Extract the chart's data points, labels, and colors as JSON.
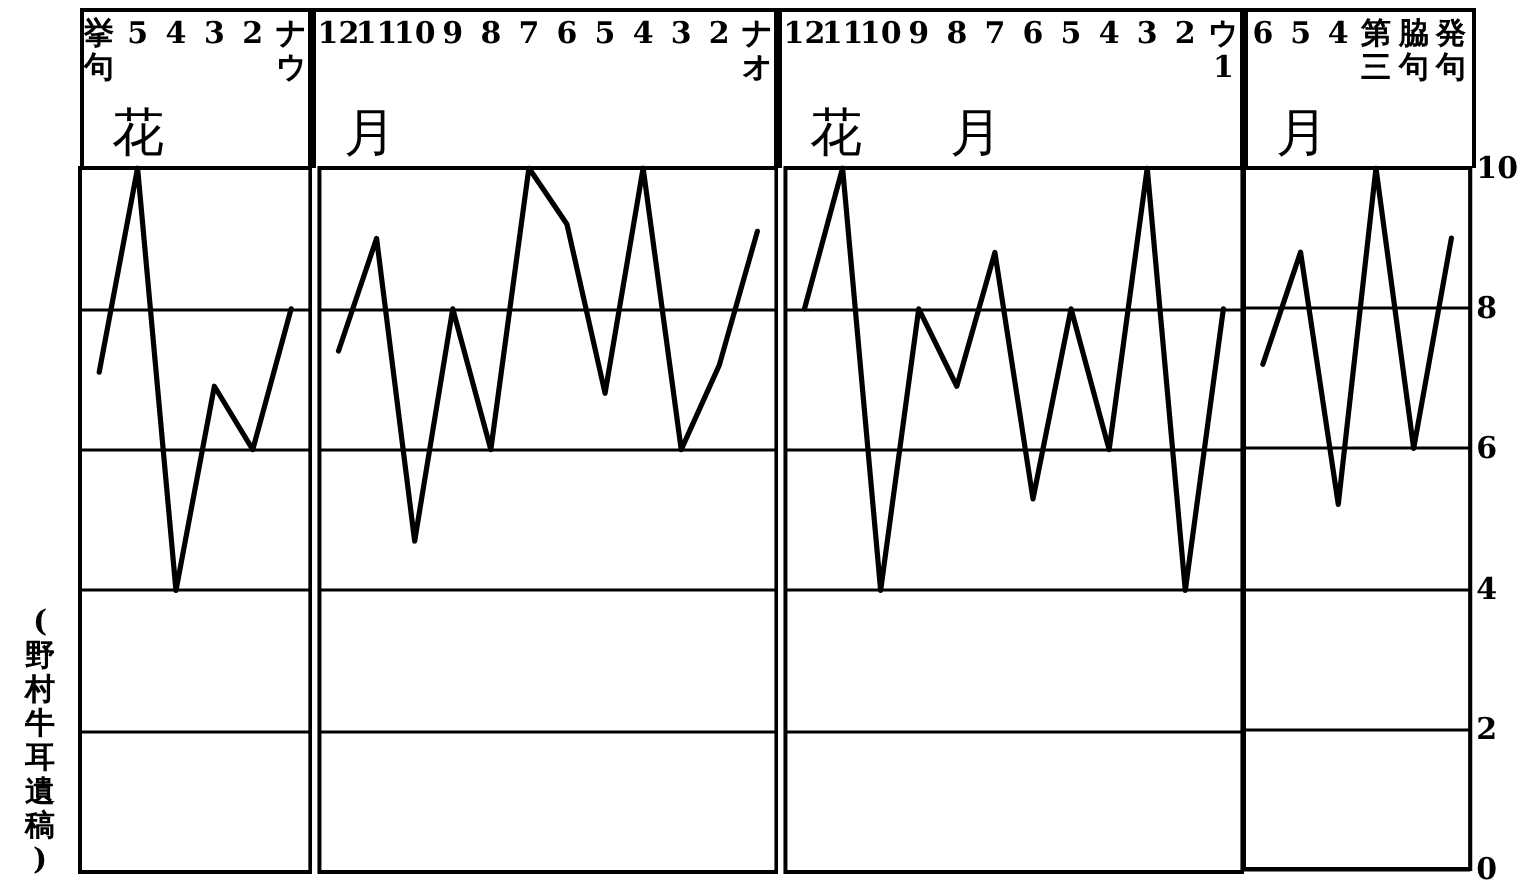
{
  "chart_data": [
    {
      "type": "line",
      "ylabel": "(野村牛耳遺稿)",
      "categories": [
        "挙句",
        "5",
        "4",
        "3",
        "2",
        "ナウ"
      ],
      "series": [
        {
          "color": "#000000",
          "values": [
            7.1,
            10,
            4,
            6.9,
            6,
            8
          ]
        }
      ],
      "ylim": [
        0,
        10
      ],
      "yticks": [
        0,
        2,
        4,
        6,
        8,
        10
      ],
      "tick_labels": "x",
      "grid": "y",
      "marker": "none",
      "line_style": "solid",
      "annotations": [
        "花"
      ]
    },
    {
      "type": "line",
      "categories": [
        "12",
        "11",
        "10",
        "9",
        "8",
        "7",
        "6",
        "5",
        "4",
        "3",
        "2",
        "ナオ"
      ],
      "series": [
        {
          "color": "#000000",
          "values": [
            7.4,
            9,
            4.7,
            8,
            6,
            10,
            9.2,
            6.8,
            10,
            6,
            7.2,
            9.1
          ]
        }
      ],
      "ylim": [
        0,
        10
      ],
      "yticks": [
        0,
        2,
        4,
        6,
        8,
        10
      ],
      "tick_labels": "x",
      "grid": "y",
      "marker": "none",
      "line_style": "solid",
      "annotations": [
        "月"
      ]
    },
    {
      "type": "line",
      "categories": [
        "12",
        "11",
        "10",
        "9",
        "8",
        "7",
        "6",
        "5",
        "4",
        "3",
        "2",
        "ウ1"
      ],
      "series": [
        {
          "color": "#000000",
          "values": [
            8,
            10,
            4,
            8,
            6.9,
            8.8,
            5.3,
            8,
            6,
            10,
            4,
            8
          ]
        }
      ],
      "ylim": [
        0,
        10
      ],
      "yticks": [
        0,
        2,
        4,
        6,
        8,
        10
      ],
      "tick_labels": "x",
      "grid": "y",
      "marker": "none",
      "line_style": "solid",
      "annotations": [
        "花",
        "月"
      ]
    },
    {
      "type": "line",
      "categories": [
        "6",
        "5",
        "4",
        "第三",
        "脇句",
        "発句"
      ],
      "series": [
        {
          "color": "#000000",
          "values": [
            7.2,
            8.8,
            5.2,
            10,
            6,
            9
          ]
        }
      ],
      "ylim": [
        0,
        10
      ],
      "yticks": [
        0,
        2,
        4,
        6,
        8,
        10
      ],
      "grid": "y",
      "marker": "none",
      "line_style": "solid",
      "annotations": [
        "月"
      ]
    }
  ]
}
